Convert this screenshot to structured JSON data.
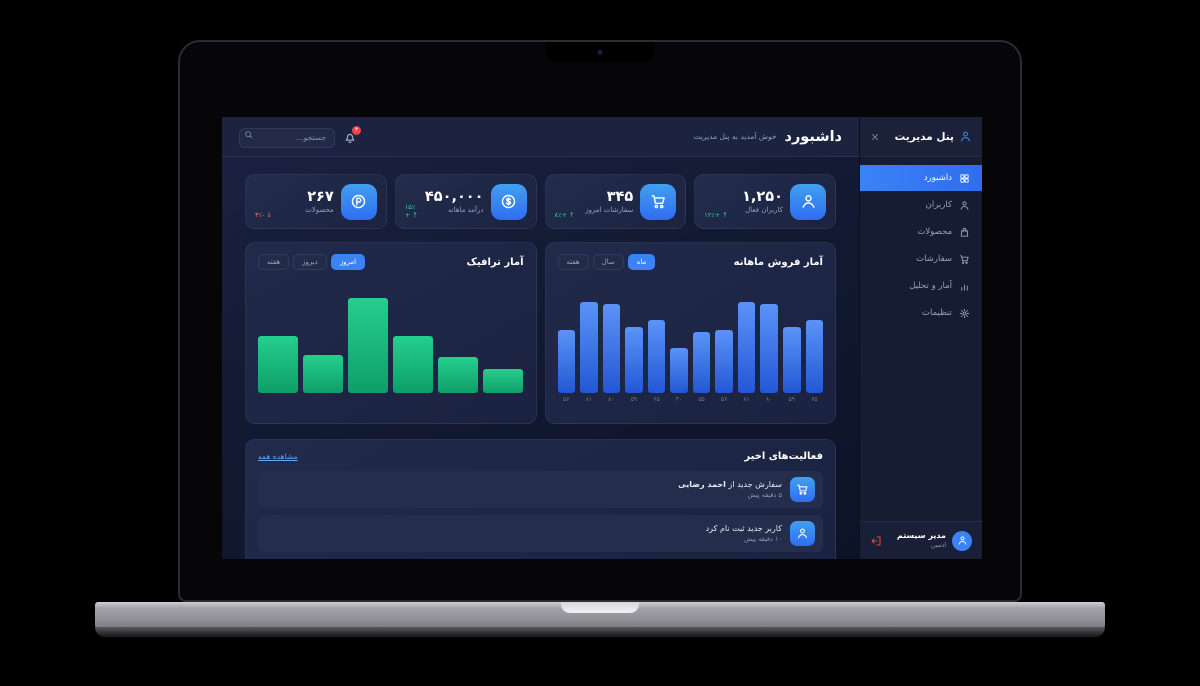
{
  "sidebar": {
    "title": "پنل مدیریت",
    "items": [
      {
        "id": "dashboard",
        "label": "داشبورد",
        "icon": "grid",
        "active": true
      },
      {
        "id": "users",
        "label": "کاربران",
        "icon": "user",
        "active": false
      },
      {
        "id": "products",
        "label": "محصولات",
        "icon": "bag",
        "active": false
      },
      {
        "id": "orders",
        "label": "سفارشات",
        "icon": "cart",
        "active": false
      },
      {
        "id": "analytics",
        "label": "آمار و تحلیل",
        "icon": "bars",
        "active": false
      },
      {
        "id": "settings",
        "label": "تنظیمات",
        "icon": "gear",
        "active": false
      }
    ],
    "user": {
      "name": "مدیر سیستم",
      "role": "ادمین"
    }
  },
  "header": {
    "title": "داشبورد",
    "subtitle": "خوش آمدید به پنل مدیریت",
    "search_placeholder": "جستجو...",
    "notification_count": "۳"
  },
  "stats": [
    {
      "value": "۱,۲۵۰",
      "label": "کاربران فعال",
      "change": "۱۲٪+",
      "arrow": "↑",
      "trend": "up",
      "icon": "user"
    },
    {
      "value": "۳۴۵",
      "label": "سفارشات امروز",
      "change": "۸٪+",
      "arrow": "↑",
      "trend": "up",
      "icon": "cart"
    },
    {
      "value": "۴۵۰,۰۰۰",
      "label": "درآمد ماهانه",
      "change": "۱۵٪+",
      "arrow": "↑",
      "trend": "up",
      "icon": "dollar"
    },
    {
      "value": "۲۶۷",
      "label": "محصولات",
      "change": "۳٪-",
      "arrow": "↓",
      "trend": "down",
      "icon": "pcircle"
    }
  ],
  "chart_data": [
    {
      "type": "bar",
      "title": "آمار فروش ماهانه",
      "tabs": [
        {
          "label": "ماه",
          "active": true
        },
        {
          "label": "سال",
          "active": false
        },
        {
          "label": "هفته",
          "active": false
        }
      ],
      "categories": [
        "۵۶",
        "۸۱",
        "۸۰",
        "۵۹",
        "۶۵",
        "۴۰",
        "۵۵",
        "۵۶",
        "۸۱",
        "۸۰",
        "۵۹",
        "۶۵"
      ],
      "values": [
        56,
        81,
        80,
        59,
        65,
        40,
        55,
        56,
        81,
        80,
        59,
        65
      ],
      "bar_color": "#3b82f6",
      "ylim": [
        0,
        85
      ],
      "grid": false,
      "legend": "none"
    },
    {
      "type": "bar",
      "title": "آمار ترافیک",
      "tabs": [
        {
          "label": "امروز",
          "active": true
        },
        {
          "label": "دیروز",
          "active": false
        },
        {
          "label": "هفته",
          "active": false
        }
      ],
      "categories": [
        "",
        "",
        "",
        "",
        "",
        ""
      ],
      "values": [
        60,
        40,
        100,
        60,
        38,
        25
      ],
      "bar_color": "#10b981",
      "ylim": [
        0,
        100
      ],
      "grid": false,
      "legend": "none"
    }
  ],
  "activities": {
    "title": "فعالیت‌های اخیر",
    "view_all": "مشاهده همه",
    "items": [
      {
        "prefix": "سفارش جدید از ",
        "name": "احمد رضایی",
        "time": "۵ دقیقه پیش",
        "icon": "cart"
      },
      {
        "prefix": "کاربر جدید ثبت نام کرد",
        "name": "",
        "time": "۱۰ دقیقه پیش",
        "icon": "user"
      }
    ]
  },
  "colors": {
    "accent": "#3b82f6",
    "bar_blue": "#3b82f6",
    "bar_green": "#10b981",
    "badge_red": "#ef4444",
    "positive": "#34d399",
    "negative": "#f87171"
  }
}
